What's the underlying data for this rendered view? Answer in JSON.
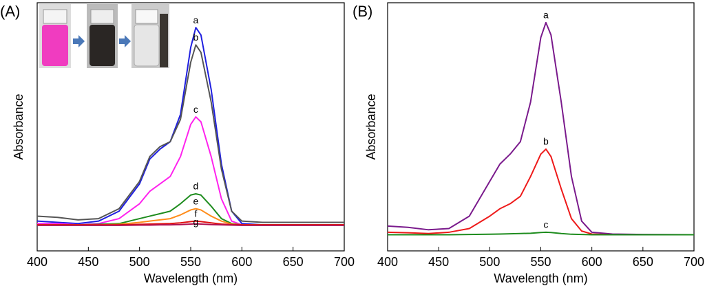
{
  "chart_data": [
    {
      "type": "line",
      "title": "(A)",
      "x_label": "Wavelength (nm)",
      "y_label": "Absorbance",
      "x": [
        400,
        420,
        440,
        460,
        480,
        500,
        510,
        520,
        530,
        540,
        550,
        555,
        560,
        570,
        580,
        590,
        600,
        620,
        650,
        700
      ],
      "xlim": [
        400,
        700
      ],
      "xticks": [
        400,
        450,
        500,
        550,
        600,
        650,
        700
      ],
      "ylim": [
        0,
        1
      ],
      "series": [
        {
          "name": "a",
          "color": "#1f1fe0",
          "values": [
            0.12,
            0.115,
            0.11,
            0.12,
            0.16,
            0.27,
            0.37,
            0.41,
            0.44,
            0.55,
            0.82,
            0.9,
            0.87,
            0.65,
            0.35,
            0.16,
            0.11,
            0.105,
            0.105,
            0.105
          ]
        },
        {
          "name": "b",
          "color": "#555555",
          "values": [
            0.14,
            0.135,
            0.125,
            0.13,
            0.17,
            0.28,
            0.38,
            0.42,
            0.44,
            0.53,
            0.76,
            0.83,
            0.8,
            0.6,
            0.33,
            0.16,
            0.12,
            0.115,
            0.115,
            0.115
          ]
        },
        {
          "name": "c",
          "color": "#ff22ee",
          "values": [
            0.11,
            0.11,
            0.105,
            0.11,
            0.13,
            0.19,
            0.24,
            0.27,
            0.3,
            0.38,
            0.51,
            0.54,
            0.52,
            0.38,
            0.21,
            0.12,
            0.105,
            0.105,
            0.105,
            0.105
          ]
        },
        {
          "name": "d",
          "color": "#1e8c1e",
          "values": [
            0.105,
            0.105,
            0.105,
            0.107,
            0.11,
            0.13,
            0.14,
            0.15,
            0.16,
            0.19,
            0.225,
            0.23,
            0.225,
            0.18,
            0.13,
            0.11,
            0.105,
            0.105,
            0.105,
            0.105
          ]
        },
        {
          "name": "e",
          "color": "#ff8c1a",
          "values": [
            0.105,
            0.105,
            0.105,
            0.105,
            0.107,
            0.115,
            0.12,
            0.125,
            0.13,
            0.145,
            0.165,
            0.17,
            0.165,
            0.14,
            0.12,
            0.108,
            0.105,
            0.105,
            0.105,
            0.105
          ]
        },
        {
          "name": "f",
          "color": "#e01010",
          "values": [
            0.105,
            0.105,
            0.105,
            0.105,
            0.105,
            0.107,
            0.108,
            0.109,
            0.11,
            0.113,
            0.118,
            0.12,
            0.118,
            0.113,
            0.108,
            0.106,
            0.105,
            0.105,
            0.105,
            0.105
          ]
        },
        {
          "name": "g",
          "color": "#b01050",
          "values": [
            0.103,
            0.103,
            0.103,
            0.103,
            0.103,
            0.104,
            0.104,
            0.105,
            0.105,
            0.106,
            0.108,
            0.109,
            0.108,
            0.106,
            0.105,
            0.104,
            0.103,
            0.103,
            0.103,
            0.103
          ]
        }
      ]
    },
    {
      "type": "line",
      "title": "(B)",
      "x_label": "Wavelength (nm)",
      "y_label": "Absorbance",
      "x": [
        400,
        420,
        440,
        460,
        480,
        500,
        510,
        520,
        530,
        540,
        550,
        555,
        560,
        570,
        580,
        590,
        600,
        620,
        650,
        700
      ],
      "xlim": [
        400,
        700
      ],
      "xticks": [
        400,
        450,
        500,
        550,
        600,
        650,
        700
      ],
      "ylim": [
        0,
        1
      ],
      "series": [
        {
          "name": "a",
          "color": "#7a1a8c",
          "values": [
            0.1,
            0.095,
            0.085,
            0.09,
            0.14,
            0.28,
            0.35,
            0.39,
            0.44,
            0.6,
            0.86,
            0.92,
            0.87,
            0.6,
            0.3,
            0.12,
            0.075,
            0.068,
            0.066,
            0.065
          ]
        },
        {
          "name": "b",
          "color": "#ee1a1a",
          "values": [
            0.075,
            0.073,
            0.07,
            0.075,
            0.09,
            0.14,
            0.17,
            0.19,
            0.22,
            0.3,
            0.39,
            0.41,
            0.38,
            0.25,
            0.13,
            0.08,
            0.068,
            0.065,
            0.065,
            0.065
          ]
        },
        {
          "name": "c",
          "color": "#1e8c1e",
          "values": [
            0.065,
            0.065,
            0.065,
            0.065,
            0.066,
            0.067,
            0.068,
            0.069,
            0.07,
            0.071,
            0.074,
            0.075,
            0.074,
            0.07,
            0.067,
            0.066,
            0.065,
            0.065,
            0.065,
            0.065
          ]
        }
      ]
    }
  ]
}
